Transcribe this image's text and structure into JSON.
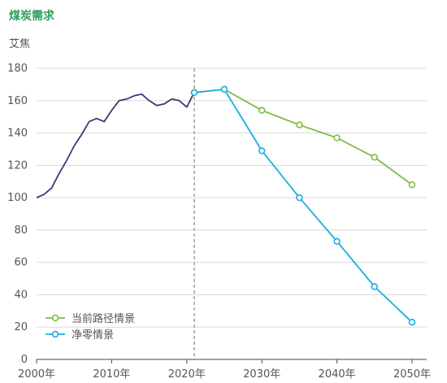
{
  "chart_data": {
    "type": "line",
    "title": "煤炭需求",
    "ylabel": "艾焦",
    "xlim": [
      2000,
      2050
    ],
    "ylim": [
      0,
      180
    ],
    "y_ticks": [
      0,
      20,
      40,
      60,
      80,
      100,
      120,
      140,
      160,
      180
    ],
    "x_ticks": [
      2000,
      2010,
      2020,
      2030,
      2040,
      2050
    ],
    "x_tick_labels": [
      "2000年",
      "2010年",
      "2020年",
      "2030年",
      "2040年",
      "2050年"
    ],
    "grid": "horizontal",
    "divider_year": 2021,
    "legend_position": "bottom-left",
    "series": [
      {
        "key": "historical",
        "color": "#3a3a72",
        "markers": false,
        "x": [
          2000,
          2001,
          2002,
          2003,
          2004,
          2005,
          2006,
          2007,
          2008,
          2009,
          2010,
          2011,
          2012,
          2013,
          2014,
          2015,
          2016,
          2017,
          2018,
          2019,
          2020,
          2021
        ],
        "y": [
          100,
          102,
          106,
          115,
          123,
          132,
          139,
          147,
          149,
          147,
          154,
          160,
          161,
          163,
          164,
          160,
          157,
          158,
          161,
          160,
          156,
          165
        ]
      },
      {
        "key": "stated_policies",
        "name": "当前路径情景",
        "color": "#7dbb42",
        "markers": true,
        "x": [
          2021,
          2025,
          2030,
          2035,
          2040,
          2045,
          2050
        ],
        "y": [
          165,
          167,
          154,
          145,
          137,
          125,
          108
        ]
      },
      {
        "key": "net_zero",
        "name": "净零情景",
        "color": "#1aaee0",
        "markers": true,
        "x": [
          2021,
          2025,
          2030,
          2035,
          2040,
          2045,
          2050
        ],
        "y": [
          165,
          167,
          129,
          100,
          73,
          45,
          23
        ]
      }
    ]
  },
  "colors": {
    "title": "#2ca05a",
    "grid": "#d9d9d9",
    "axis": "#444444",
    "divider": "#888888"
  }
}
